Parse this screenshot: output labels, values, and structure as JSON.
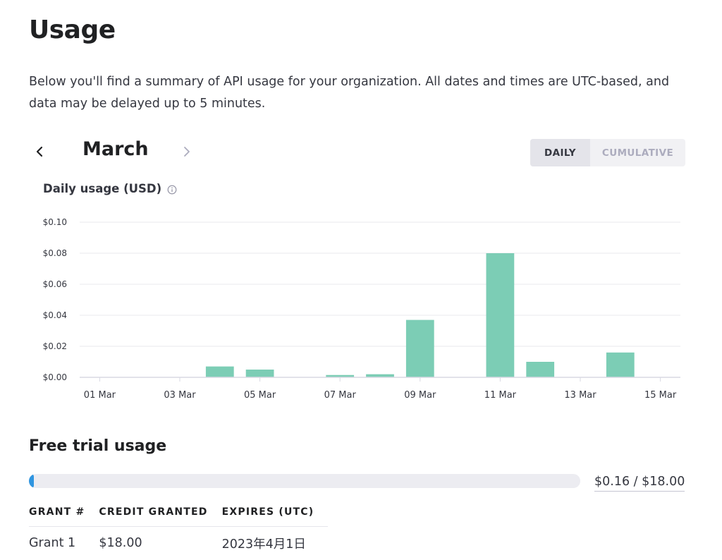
{
  "page": {
    "title": "Usage",
    "intro": "Below you'll find a summary of API usage for your organization. All dates and times are UTC-based, and data may be delayed up to 5 minutes."
  },
  "month_nav": {
    "prev_icon": "chevron-left-icon",
    "month": "March",
    "next_icon": "chevron-right-icon"
  },
  "view_toggle": {
    "options": [
      "DAILY",
      "CUMULATIVE"
    ],
    "selected": "DAILY"
  },
  "chart": {
    "title": "Daily usage (USD)",
    "info_icon": "info-icon"
  },
  "chart_data": {
    "type": "bar",
    "title": "Daily usage (USD)",
    "xlabel": "",
    "ylabel": "",
    "x_ticks": [
      "01 Mar",
      "03 Mar",
      "05 Mar",
      "07 Mar",
      "09 Mar",
      "11 Mar",
      "13 Mar",
      "15 Mar"
    ],
    "y_ticks": [
      "$0.00",
      "$0.02",
      "$0.04",
      "$0.06",
      "$0.08",
      "$0.10"
    ],
    "ylim": [
      0,
      0.1
    ],
    "categories": [
      "01 Mar",
      "02 Mar",
      "03 Mar",
      "04 Mar",
      "05 Mar",
      "06 Mar",
      "07 Mar",
      "08 Mar",
      "09 Mar",
      "10 Mar",
      "11 Mar",
      "12 Mar",
      "13 Mar",
      "14 Mar",
      "15 Mar"
    ],
    "values": [
      0,
      0,
      0,
      0.007,
      0.005,
      0,
      0.0015,
      0.002,
      0.037,
      0,
      0.08,
      0.01,
      0,
      0.016,
      0
    ],
    "grid": true,
    "colors": {
      "bar": "#7ccdb5",
      "grid": "#e8e8ee",
      "axis": "#d9d9e3",
      "tick_text": "#353740"
    }
  },
  "free_trial": {
    "title": "Free trial usage",
    "used": 0.16,
    "total": 18.0,
    "label": "$0.16 / $18.00",
    "bar_color": "#2f95e0"
  },
  "grants_table": {
    "headers": [
      "GRANT #",
      "CREDIT GRANTED",
      "EXPIRES (UTC)"
    ],
    "rows": [
      [
        "Grant 1",
        "$18.00",
        "2023年4月1日"
      ]
    ]
  }
}
